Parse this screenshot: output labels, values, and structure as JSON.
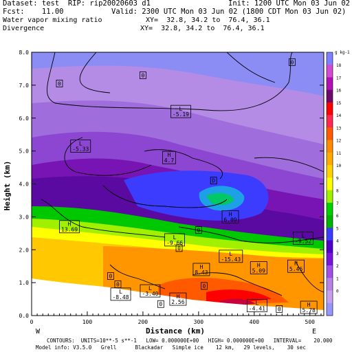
{
  "header": {
    "dataset": "Dataset: test  RIP: rip20020603 d1",
    "init": "Init: 1200 UTC Mon 03 Jun 02",
    "fcst": "Fcst:    11.00",
    "valid": "Valid: 2300 UTC Mon 03 Jun 02 (1800 CDT Mon 03 Jun 02)",
    "field1": "Water vapor mixing ratio",
    "xy1": "XY=  32.8, 34.2 to  76.4, 36.1",
    "field2": "Divergence",
    "xy2": "XY=  32.8, 34.2 to  76.4, 36.1"
  },
  "colorbar": {
    "unit": "g kg-1",
    "labels": [
      "18",
      "17",
      "16",
      "15",
      "14",
      "13",
      "12",
      "11",
      "10",
      "9",
      "8",
      "7",
      "6",
      "5",
      "4",
      "3",
      "2",
      "1",
      "0"
    ],
    "colors": [
      "#7f7fff",
      "#d24bd2",
      "#b40fb4",
      "#6e0a6e",
      "#ff0000",
      "#ff2850",
      "#ff5a00",
      "#ff8c00",
      "#ffaa00",
      "#ffd200",
      "#ffff00",
      "#a0f000",
      "#00d200",
      "#00b400",
      "#3c3cff",
      "#5000c8",
      "#7814dc",
      "#a050e6",
      "#b982e6",
      "#c8a0f0",
      "#9696ff"
    ]
  },
  "footer": {
    "line1": "CONTOURS:  UNITS=10**-5 s**-1   LOW= 0.000000E+00   HIGH= 0.000000E+00   INTERVAL=    20.000",
    "line2": "Model info: V3.5.0   Grell      Blackadar   Simple ice    12 km,   29 levels,    30 sec"
  },
  "chart_data": {
    "type": "heatmap",
    "title": "",
    "xlabel": "Distance (km)",
    "ylabel": "Height (km)",
    "xlim": [
      0,
      525
    ],
    "ylim": [
      0,
      8
    ],
    "xticks": [
      0,
      100,
      200,
      300,
      400,
      500
    ],
    "yticks": [
      0,
      1,
      2,
      3,
      4,
      5,
      6,
      7,
      8
    ],
    "x_end_labels": [
      "W",
      "E"
    ],
    "annotations": [
      {
        "label": "L",
        "value": "-5.19",
        "x": 268,
        "y": 6.2
      },
      {
        "label": "L",
        "value": "-5.33",
        "x": 88,
        "y": 5.15
      },
      {
        "label": "H",
        "value": "4.7",
        "x": 247,
        "y": 4.8
      },
      {
        "label": "D",
        "value": "",
        "x": 327,
        "y": 4.1
      },
      {
        "label": "H",
        "value": "6.09",
        "x": 357,
        "y": 3.0
      },
      {
        "label": "H",
        "value": "13.69",
        "x": 68,
        "y": 2.7
      },
      {
        "label": "L",
        "value": "-9.66",
        "x": 257,
        "y": 2.3
      },
      {
        "label": "L",
        "value": "-9.52",
        "x": 488,
        "y": 2.35
      },
      {
        "label": "L",
        "value": "-15.43",
        "x": 358,
        "y": 1.8
      },
      {
        "label": "H",
        "value": "5.09",
        "x": 408,
        "y": 1.45
      },
      {
        "label": "H",
        "value": "5.46",
        "x": 475,
        "y": 1.5
      },
      {
        "label": "H",
        "value": "8.43",
        "x": 305,
        "y": 1.4
      },
      {
        "label": "L",
        "value": "-8.48",
        "x": 160,
        "y": 0.65
      },
      {
        "label": "L",
        "value": "-3.40",
        "x": 213,
        "y": 0.75
      },
      {
        "label": "H",
        "value": "2.56",
        "x": 263,
        "y": 0.5
      },
      {
        "label": "L",
        "value": "-4.41",
        "x": 405,
        "y": 0.3
      },
      {
        "label": "H",
        "value": "5.78",
        "x": 498,
        "y": 0.25
      },
      {
        "label": "0",
        "value": "",
        "x": 50,
        "y": 7.05
      },
      {
        "label": "0",
        "value": "",
        "x": 200,
        "y": 7.3
      },
      {
        "label": "0",
        "value": "",
        "x": 468,
        "y": 7.7
      },
      {
        "label": "0",
        "value": "",
        "x": 265,
        "y": 2.05
      },
      {
        "label": "0",
        "value": "",
        "x": 300,
        "y": 2.6
      },
      {
        "label": "0",
        "value": "",
        "x": 142,
        "y": 1.2
      },
      {
        "label": "0",
        "value": "",
        "x": 155,
        "y": 0.95
      },
      {
        "label": "0",
        "value": "",
        "x": 310,
        "y": 0.9
      },
      {
        "label": "0",
        "value": "",
        "x": 232,
        "y": 0.35
      },
      {
        "label": "0",
        "value": "",
        "x": 445,
        "y": 0.2
      }
    ]
  }
}
